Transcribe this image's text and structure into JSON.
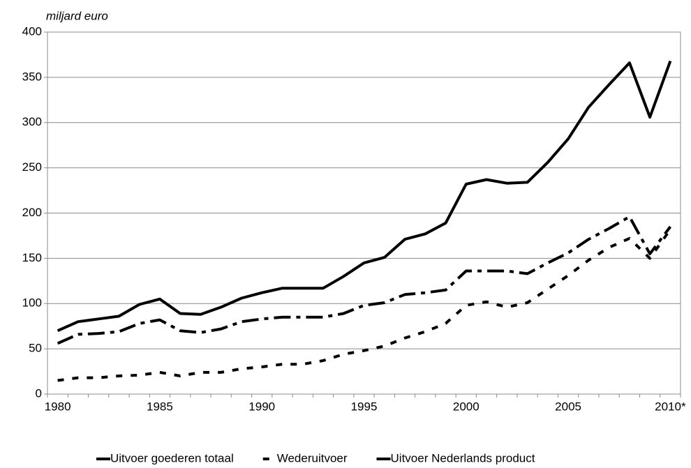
{
  "chart_data": {
    "type": "line",
    "y_label": "miljard euro",
    "categories": [
      "1980",
      null,
      null,
      null,
      null,
      "1985",
      null,
      null,
      null,
      null,
      "1990",
      null,
      null,
      null,
      null,
      "1995",
      null,
      null,
      null,
      null,
      "2000",
      null,
      null,
      null,
      null,
      "2005",
      null,
      null,
      null,
      null,
      "2010*"
    ],
    "series": [
      {
        "name": "Uitvoer goederen totaal",
        "color": "#000000",
        "values": [
          70,
          80,
          83,
          86,
          99,
          105,
          89,
          88,
          96,
          106,
          112,
          117,
          117,
          117,
          130,
          145,
          151,
          171,
          177,
          189,
          232,
          237,
          233,
          234,
          256,
          282,
          317,
          342,
          366,
          306,
          368
        ]
      },
      {
        "name": "Wederuitvoer",
        "color": "#000000",
        "values": [
          15,
          18,
          18,
          20,
          21,
          24,
          20,
          24,
          24,
          28,
          30,
          33,
          33,
          37,
          44,
          48,
          53,
          62,
          69,
          78,
          98,
          102,
          96,
          101,
          116,
          131,
          148,
          162,
          172,
          150,
          182
        ]
      },
      {
        "name": "Uitvoer Nederlands product",
        "color": "#000000",
        "values": [
          56,
          66,
          67,
          69,
          78,
          82,
          70,
          68,
          72,
          80,
          83,
          85,
          85,
          85,
          89,
          98,
          101,
          110,
          112,
          115,
          136,
          136,
          136,
          133,
          145,
          156,
          171,
          183,
          196,
          155,
          185
        ]
      }
    ],
    "ylim": [
      0,
      400
    ],
    "yticks": [
      0,
      50,
      100,
      150,
      200,
      250,
      300,
      350,
      400
    ],
    "grid": true,
    "legend": "bottom"
  }
}
